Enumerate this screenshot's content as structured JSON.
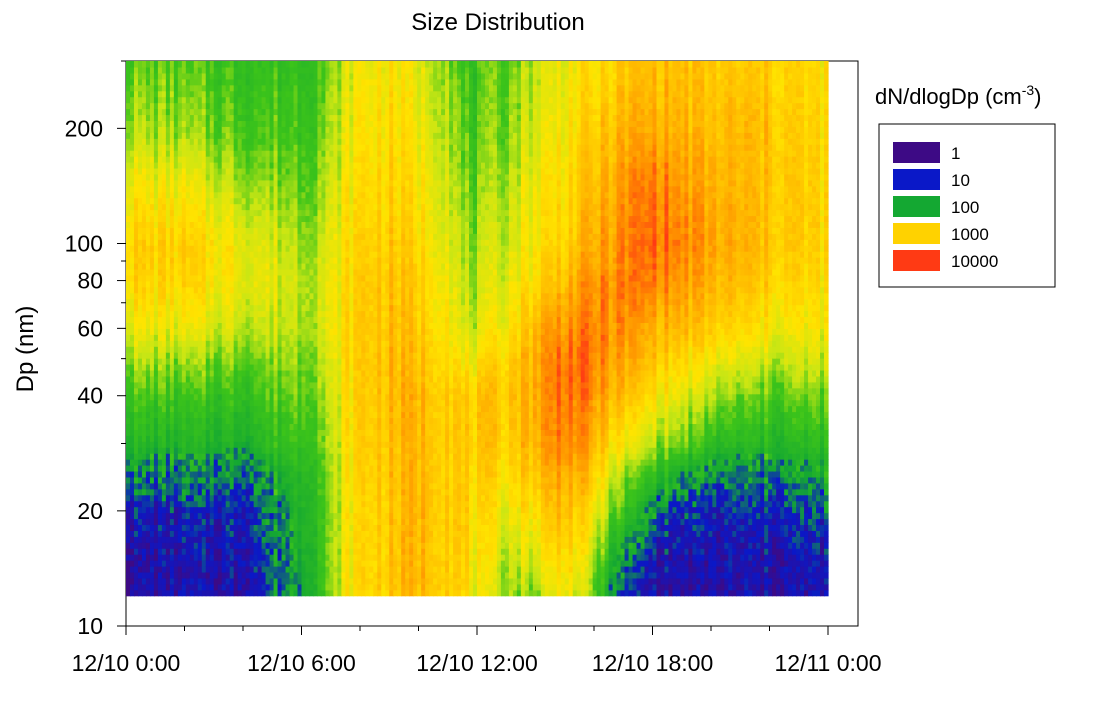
{
  "chart_data": {
    "type": "heatmap",
    "title": "Size Distribution",
    "xlabel": "",
    "ylabel": "Dp (nm)",
    "y_scale": "log",
    "xlim": [
      "12/10 0:00",
      "12/11 0:00"
    ],
    "ylim": [
      10,
      300
    ],
    "x_tick_labels": [
      "12/10 0:00",
      "12/10 6:00",
      "12/10 12:00",
      "12/10 18:00",
      "12/11 0:00"
    ],
    "x_tick_hours": [
      0,
      6,
      12,
      18,
      24
    ],
    "y_tick_labels": [
      "10",
      "20",
      "40",
      "60",
      "80",
      "100",
      "200"
    ],
    "y_tick_values": [
      10,
      20,
      40,
      60,
      80,
      100,
      200
    ],
    "data_range": {
      "dp_min_nm": 12,
      "dp_max_nm": 300
    },
    "legend": {
      "title": "dN/dlogDp (cm",
      "title_sup": "-3",
      "title_end": ")",
      "position": "right",
      "entries": [
        {
          "label": "1",
          "value": 1,
          "color": "#3d0a85"
        },
        {
          "label": "10",
          "value": 10,
          "color": "#0a18c8"
        },
        {
          "label": "100",
          "value": 100,
          "color": "#14a832"
        },
        {
          "label": "1000",
          "value": 1000,
          "color": "#ffd200"
        },
        {
          "label": "10000",
          "value": 10000,
          "color": "#ff3a14"
        }
      ]
    },
    "colormap_log10": [
      [
        0,
        "#3d0a85"
      ],
      [
        1,
        "#0a18c8"
      ],
      [
        1.7,
        "#14a832"
      ],
      [
        2.3,
        "#3cc41a"
      ],
      [
        2.65,
        "#c8e614"
      ],
      [
        3.0,
        "#ffe400"
      ],
      [
        3.4,
        "#ffb800"
      ],
      [
        3.7,
        "#ff8a00"
      ],
      [
        4.0,
        "#ff3a14"
      ]
    ],
    "log10_concentration_grid": {
      "time_hours": [
        0,
        2,
        4,
        6,
        7,
        7.5,
        8,
        9,
        10,
        11,
        11.5,
        12,
        13,
        14,
        15,
        16,
        17,
        18,
        19,
        20,
        21,
        22,
        23,
        24
      ],
      "dp_nm": [
        12,
        15,
        20,
        25,
        30,
        40,
        50,
        60,
        80,
        100,
        150,
        200,
        300
      ],
      "values": [
        [
          0.5,
          0.5,
          0.6,
          1.8,
          2.4,
          2.9,
          3.1,
          3.25,
          3.4,
          3.3,
          3.1,
          2.8,
          2.55,
          2.5,
          3.0,
          2.4,
          1.0,
          0.6,
          0.4,
          0.4,
          0.5,
          0.5,
          0.5,
          0.6
        ],
        [
          0.5,
          0.5,
          0.7,
          1.9,
          2.4,
          2.9,
          3.1,
          3.25,
          3.4,
          3.3,
          3.15,
          2.9,
          2.7,
          2.8,
          3.2,
          2.6,
          1.6,
          0.8,
          0.6,
          0.5,
          0.6,
          0.6,
          0.6,
          0.8
        ],
        [
          0.8,
          0.9,
          1.0,
          2.0,
          2.4,
          2.9,
          3.1,
          3.25,
          3.4,
          3.3,
          3.2,
          3.0,
          2.9,
          3.1,
          3.4,
          2.9,
          2.2,
          1.6,
          1.0,
          0.9,
          0.9,
          0.9,
          1.1,
          1.2
        ],
        [
          1.6,
          1.5,
          1.4,
          2.1,
          2.45,
          2.9,
          3.15,
          3.3,
          3.4,
          3.3,
          3.2,
          3.1,
          3.1,
          3.3,
          3.6,
          3.2,
          2.5,
          2.2,
          1.8,
          1.5,
          1.5,
          1.5,
          1.6,
          1.7
        ],
        [
          2.0,
          1.9,
          1.9,
          2.3,
          2.5,
          2.95,
          3.2,
          3.3,
          3.4,
          3.3,
          3.2,
          3.2,
          3.2,
          3.45,
          3.8,
          3.4,
          2.9,
          2.6,
          2.4,
          2.1,
          2.0,
          2.0,
          2.0,
          2.1
        ],
        [
          2.3,
          2.2,
          2.2,
          2.45,
          2.6,
          3.0,
          3.2,
          3.35,
          3.4,
          3.3,
          3.2,
          3.2,
          3.3,
          3.5,
          3.85,
          3.6,
          3.3,
          3.05,
          2.8,
          2.55,
          2.4,
          2.35,
          2.4,
          2.4
        ],
        [
          2.6,
          2.5,
          2.45,
          2.55,
          2.7,
          3.05,
          3.2,
          3.35,
          3.3,
          3.2,
          2.9,
          2.9,
          3.2,
          3.5,
          3.85,
          3.7,
          3.5,
          3.3,
          3.1,
          2.9,
          2.8,
          2.7,
          2.7,
          2.7
        ],
        [
          2.9,
          2.8,
          2.7,
          2.65,
          2.8,
          3.05,
          3.2,
          3.35,
          3.25,
          3.1,
          2.7,
          2.7,
          3.0,
          3.4,
          3.7,
          3.7,
          3.6,
          3.45,
          3.35,
          3.2,
          3.05,
          2.95,
          2.9,
          2.9
        ],
        [
          3.15,
          3.1,
          2.9,
          2.7,
          2.8,
          3.05,
          3.2,
          3.3,
          3.2,
          3.0,
          2.6,
          2.55,
          2.85,
          3.1,
          3.4,
          3.6,
          3.7,
          3.75,
          3.55,
          3.4,
          3.3,
          3.2,
          3.1,
          3.0
        ],
        [
          3.2,
          3.15,
          2.9,
          2.6,
          2.75,
          3.0,
          3.15,
          3.25,
          3.1,
          2.9,
          2.55,
          2.5,
          2.75,
          3.0,
          3.2,
          3.45,
          3.65,
          3.85,
          3.7,
          3.5,
          3.4,
          3.3,
          3.2,
          3.1
        ],
        [
          2.9,
          2.8,
          2.55,
          2.4,
          2.6,
          2.9,
          3.05,
          3.15,
          3.0,
          2.8,
          2.4,
          2.35,
          2.6,
          2.9,
          3.1,
          3.3,
          3.55,
          3.75,
          3.55,
          3.4,
          3.35,
          3.3,
          3.2,
          3.1
        ],
        [
          2.6,
          2.5,
          2.35,
          2.3,
          2.5,
          2.8,
          3.0,
          3.1,
          2.9,
          2.7,
          2.3,
          2.25,
          2.5,
          2.8,
          3.0,
          3.2,
          3.4,
          3.5,
          3.4,
          3.3,
          3.35,
          3.3,
          3.15,
          3.05
        ],
        [
          2.4,
          2.3,
          2.2,
          2.2,
          2.4,
          2.7,
          2.9,
          3.0,
          2.8,
          2.6,
          2.2,
          2.2,
          2.4,
          2.7,
          2.9,
          3.0,
          3.2,
          3.3,
          3.3,
          3.2,
          3.2,
          3.2,
          3.1,
          3.0
        ]
      ]
    }
  }
}
